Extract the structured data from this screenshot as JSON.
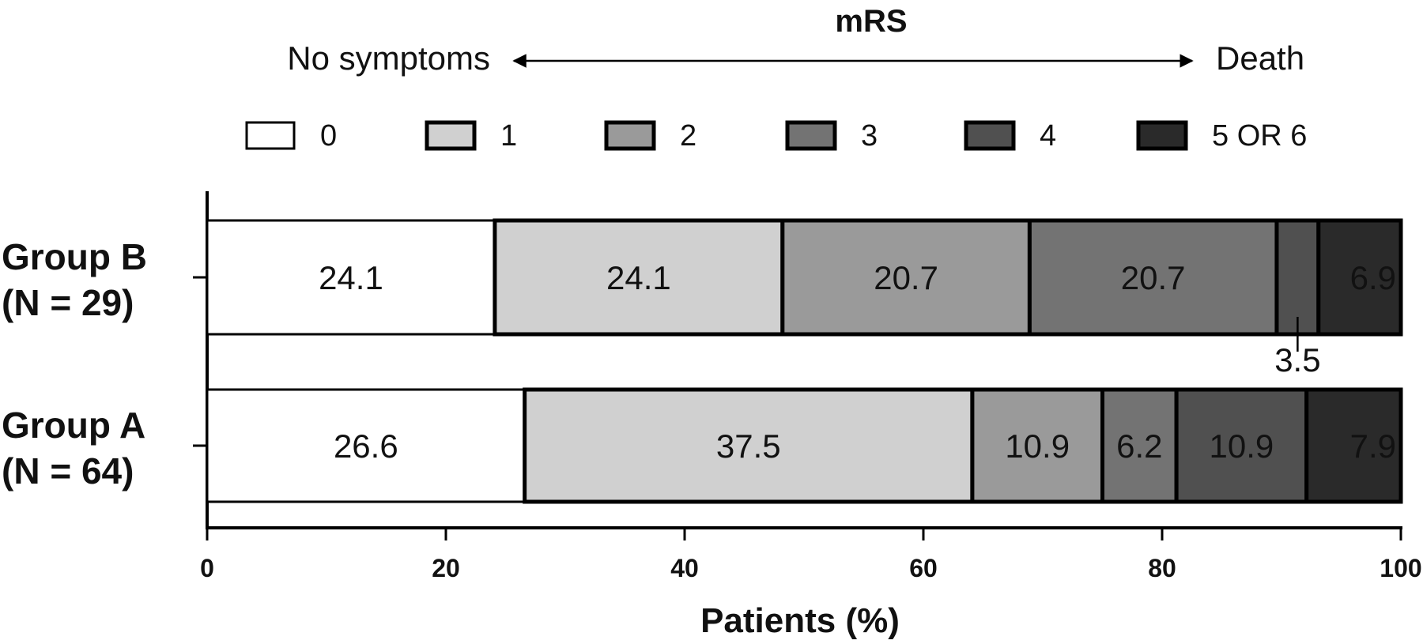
{
  "chart_data": {
    "type": "bar",
    "orientation": "horizontal",
    "stacked": true,
    "title": "mRS",
    "scale_left_label": "No symptoms",
    "scale_right_label": "Death",
    "xlabel": "Patients (%)",
    "ylabel": "",
    "xlim": [
      0,
      100
    ],
    "xticks": [
      "0",
      "20",
      "40",
      "60",
      "80",
      "100"
    ],
    "grid": false,
    "legend_position": "top",
    "categories": [
      {
        "line1": "Group B",
        "line2": "(N = 29)"
      },
      {
        "line1": "Group A",
        "line2": "(N = 64)"
      }
    ],
    "series": [
      {
        "name": "0",
        "color": "#ffffff",
        "values": [
          24.1,
          26.6
        ],
        "labels": [
          "24.1",
          "26.6"
        ]
      },
      {
        "name": "1",
        "color": "#d0d0d0",
        "values": [
          24.1,
          37.5
        ],
        "labels": [
          "24.1",
          "37.5"
        ]
      },
      {
        "name": "2",
        "color": "#9a9a9a",
        "values": [
          20.7,
          10.9
        ],
        "labels": [
          "20.7",
          "10.9"
        ]
      },
      {
        "name": "3",
        "color": "#737373",
        "values": [
          20.7,
          6.2
        ],
        "labels": [
          "20.7",
          "6.2"
        ]
      },
      {
        "name": "4",
        "color": "#505050",
        "values": [
          3.5,
          10.9
        ],
        "labels": [
          "3.5",
          "10.9"
        ]
      },
      {
        "name": "5 OR 6",
        "color": "#2a2a2a",
        "values": [
          6.9,
          7.9
        ],
        "labels": [
          "6.9",
          "7.9"
        ]
      }
    ],
    "callouts": [
      {
        "category_index": 0,
        "series_index": 4,
        "text": "3.5"
      }
    ]
  }
}
